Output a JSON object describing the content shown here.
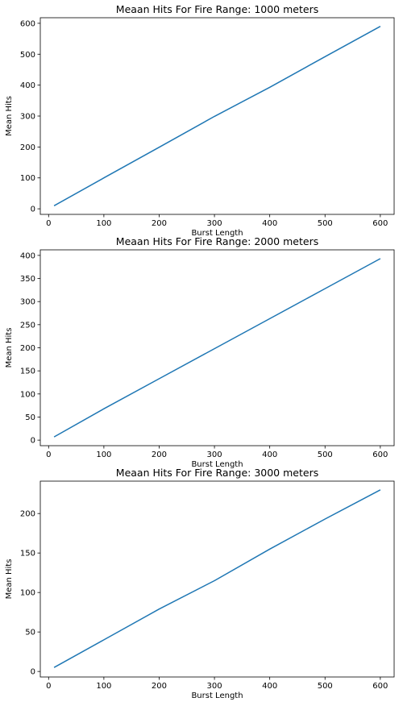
{
  "chart_data": [
    {
      "type": "line",
      "title": "Meaan Hits For Fire Range: 1000 meters",
      "xlabel": "Burst Length",
      "ylabel": "Mean Hits",
      "xlim": [
        -15,
        625
      ],
      "ylim": [
        -18,
        618
      ],
      "xticks": [
        0,
        100,
        200,
        300,
        400,
        500,
        600
      ],
      "yticks": [
        0,
        100,
        200,
        300,
        400,
        500,
        600
      ],
      "line_color": "#1f77b4",
      "grid": false,
      "series": [
        {
          "x": [
            10,
            100,
            200,
            300,
            400,
            500,
            600
          ],
          "y": [
            10,
            100,
            199,
            299,
            393,
            492,
            590
          ]
        }
      ]
    },
    {
      "type": "line",
      "title": "Meaan Hits For Fire Range: 2000 meters",
      "xlabel": "Burst Length",
      "ylabel": "Mean Hits",
      "xlim": [
        -15,
        625
      ],
      "ylim": [
        -12,
        412
      ],
      "xticks": [
        0,
        100,
        200,
        300,
        400,
        500,
        600
      ],
      "yticks": [
        0,
        50,
        100,
        150,
        200,
        250,
        300,
        350,
        400
      ],
      "line_color": "#1f77b4",
      "grid": false,
      "series": [
        {
          "x": [
            10,
            100,
            200,
            300,
            400,
            500,
            600
          ],
          "y": [
            7,
            68,
            133,
            198,
            263,
            328,
            393
          ]
        }
      ]
    },
    {
      "type": "line",
      "title": "Meaan Hits For Fire Range: 3000 meters",
      "xlabel": "Burst Length",
      "ylabel": "Mean Hits",
      "xlim": [
        -15,
        625
      ],
      "ylim": [
        -7,
        241
      ],
      "xticks": [
        0,
        100,
        200,
        300,
        400,
        500,
        600
      ],
      "yticks": [
        0,
        50,
        100,
        150,
        200
      ],
      "line_color": "#1f77b4",
      "grid": false,
      "series": [
        {
          "x": [
            10,
            100,
            200,
            300,
            400,
            500,
            600
          ],
          "y": [
            5,
            40,
            79,
            115,
            155,
            193,
            230
          ]
        }
      ]
    }
  ]
}
